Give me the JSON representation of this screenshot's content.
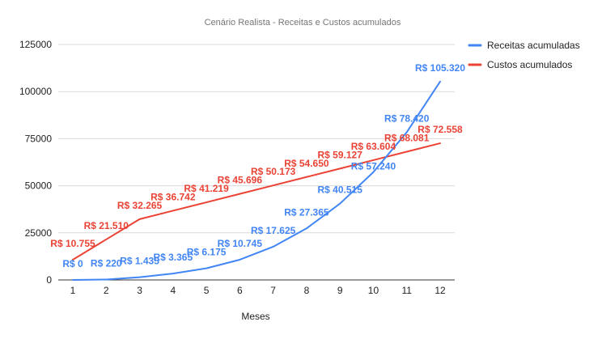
{
  "chart_data": {
    "type": "line",
    "title": "Cenário Realista - Receitas e Custos acumulados",
    "xlabel": "Meses",
    "ylabel": "",
    "x": [
      1,
      2,
      3,
      4,
      5,
      6,
      7,
      8,
      9,
      10,
      11,
      12
    ],
    "x_tick_labels": [
      "1",
      "2",
      "3",
      "4",
      "5",
      "6",
      "7",
      "8",
      "9",
      "10",
      "11",
      "12"
    ],
    "ylim": [
      0,
      125000
    ],
    "y_ticks": [
      0,
      25000,
      50000,
      75000,
      100000,
      125000
    ],
    "y_tick_labels": [
      "0",
      "25000",
      "50000",
      "75000",
      "100000",
      "125000"
    ],
    "grid": "horizontal",
    "legend_position": "right",
    "series": [
      {
        "name": "Receitas acumuladas",
        "color": "#4285f4",
        "values": [
          0,
          220,
          1435,
          3365,
          6175,
          10745,
          17625,
          27365,
          40515,
          57240,
          78420,
          105320
        ],
        "data_labels": [
          "R$ 0",
          "R$ 220",
          "R$ 1.435",
          "R$ 3.365",
          "R$ 6.175",
          "R$ 10.745",
          "R$ 17.625",
          "R$ 27.365",
          "R$ 40.515",
          "R$ 57.240",
          "R$ 78.420",
          "R$ 105.320"
        ]
      },
      {
        "name": "Custos acumulados",
        "color": "#ea4335",
        "values": [
          10755,
          21510,
          32265,
          36742,
          41219,
          45696,
          50173,
          54650,
          59127,
          63604,
          68081,
          72558
        ],
        "data_labels": [
          "R$ 10.755",
          "R$ 21.510",
          "R$ 32.265",
          "R$ 36.742",
          "R$ 41.219",
          "R$ 45.696",
          "R$ 50.173",
          "R$ 54.650",
          "R$ 59.127",
          "R$ 63.604",
          "R$ 68.081",
          "R$ 72.558"
        ]
      }
    ]
  }
}
